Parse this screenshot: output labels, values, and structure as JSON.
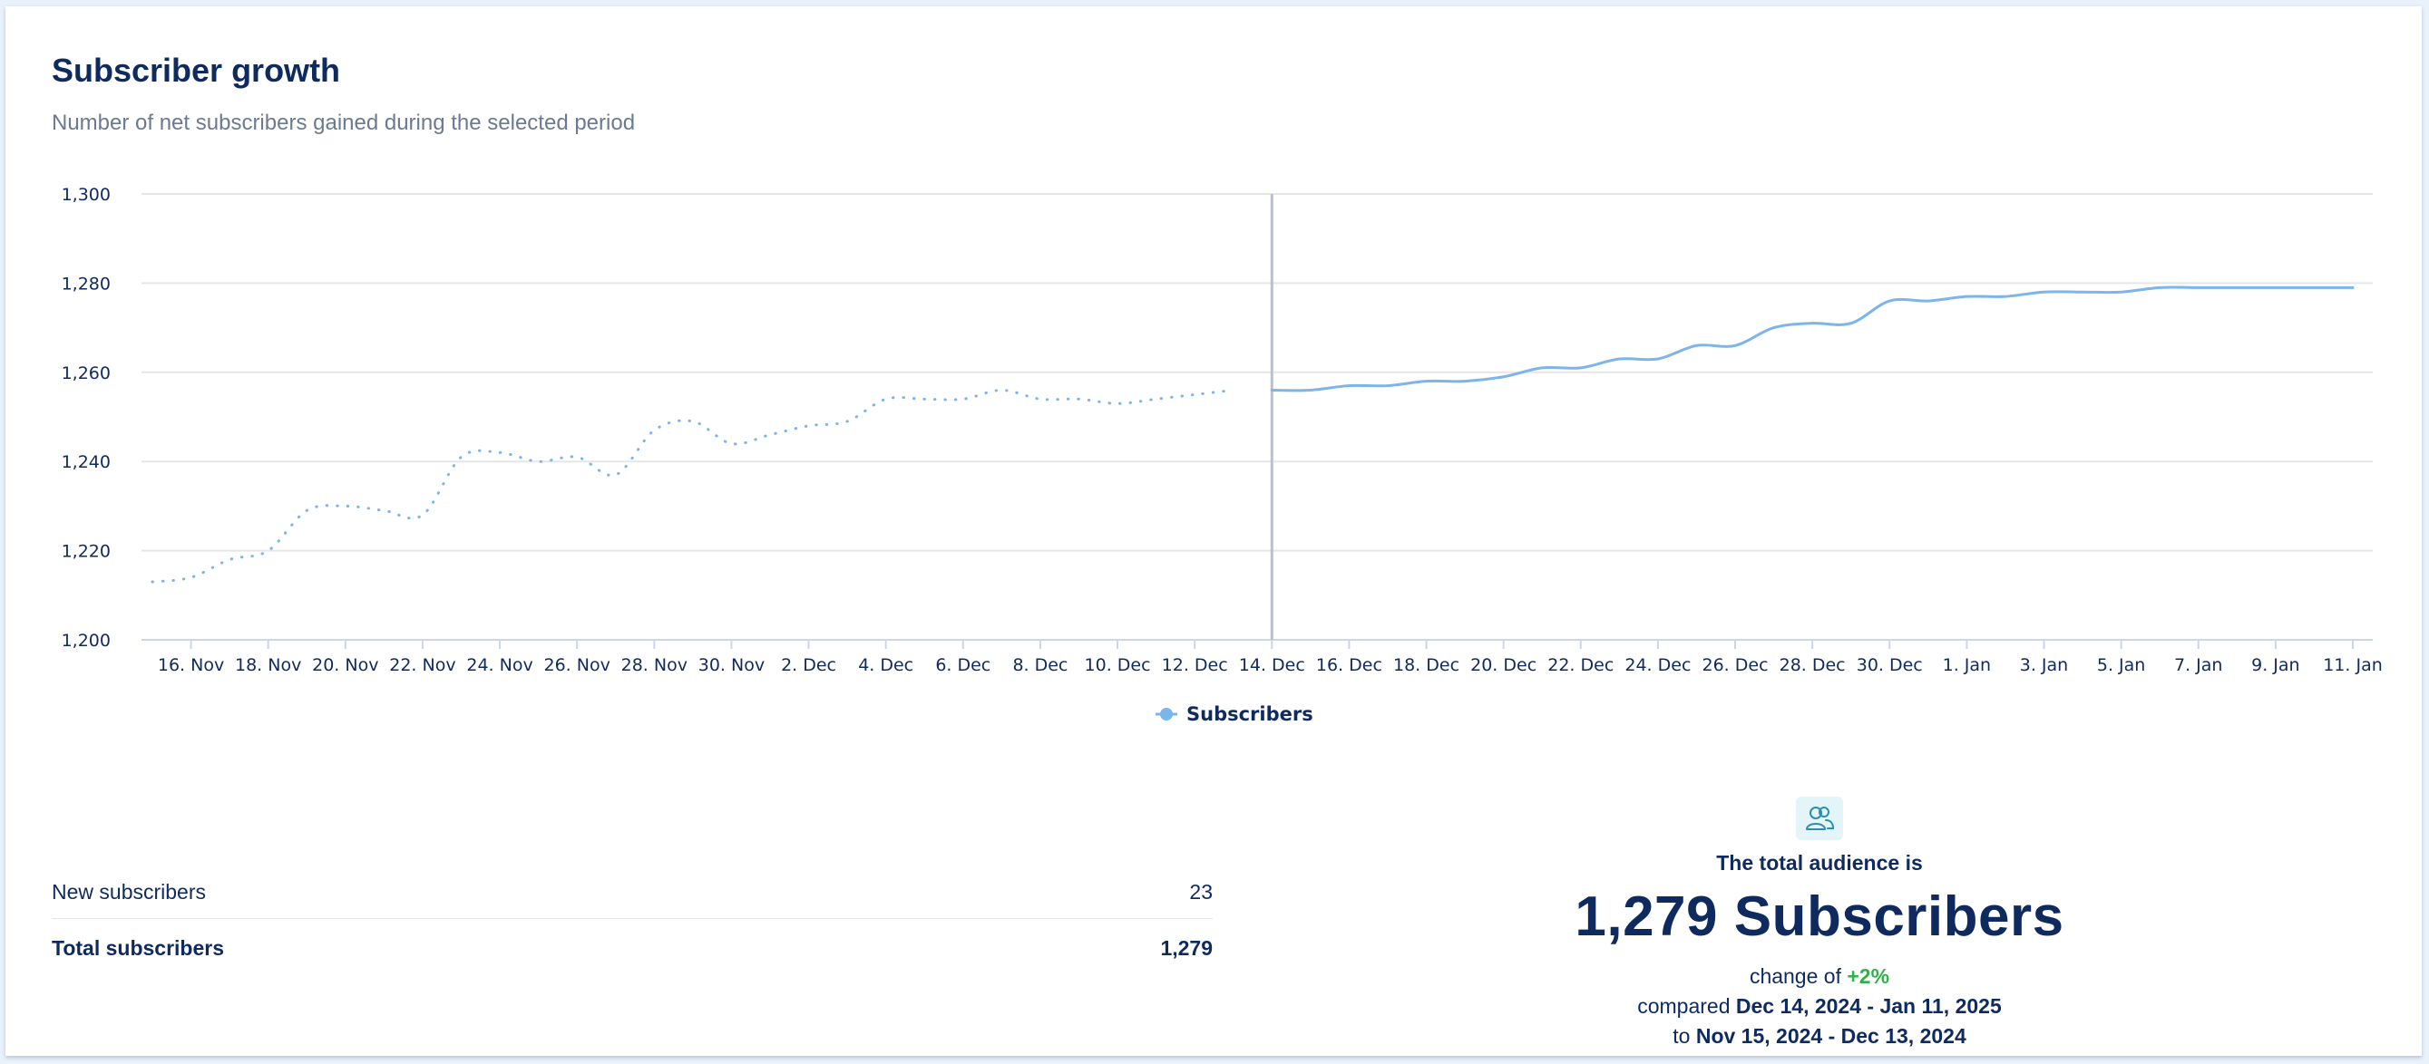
{
  "header": {
    "title": "Subscriber growth",
    "subtitle": "Number of net subscribers gained during the selected period"
  },
  "chart_data": {
    "type": "line",
    "title": "",
    "xlabel": "",
    "ylabel": "",
    "x_unit": "date",
    "start_date": "2024-11-15",
    "end_date": "2025-01-11",
    "ylim": [
      1200,
      1300
    ],
    "yticks": [
      1200,
      1220,
      1240,
      1260,
      1280,
      1300
    ],
    "y_tick_labels": [
      "1,200",
      "1,220",
      "1,240",
      "1,260",
      "1,280",
      "1,300"
    ],
    "x_tick_labels": [
      "16. Nov",
      "18. Nov",
      "20. Nov",
      "22. Nov",
      "24. Nov",
      "26. Nov",
      "28. Nov",
      "30. Nov",
      "2. Dec",
      "4. Dec",
      "6. Dec",
      "8. Dec",
      "10. Dec",
      "12. Dec",
      "14. Dec",
      "16. Dec",
      "18. Dec",
      "20. Dec",
      "22. Dec",
      "24. Dec",
      "26. Dec",
      "28. Dec",
      "30. Dec",
      "1. Jan",
      "3. Jan",
      "5. Jan",
      "7. Jan",
      "9. Jan",
      "11. Jan"
    ],
    "grid": true,
    "divider_at": "14. Dec",
    "legend_position": "bottom-center",
    "series": [
      {
        "name": "Subscribers",
        "color": "#7cb5ec",
        "segments": [
          {
            "style": "dotted",
            "label": "comparison period",
            "points": [
              [
                "15. Nov",
                1213
              ],
              [
                "16. Nov",
                1214
              ],
              [
                "17. Nov",
                1218
              ],
              [
                "18. Nov",
                1220
              ],
              [
                "19. Nov",
                1229
              ],
              [
                "20. Nov",
                1230
              ],
              [
                "21. Nov",
                1229
              ],
              [
                "22. Nov",
                1228
              ],
              [
                "23. Nov",
                1241
              ],
              [
                "24. Nov",
                1242
              ],
              [
                "25. Nov",
                1240
              ],
              [
                "26. Nov",
                1241
              ],
              [
                "27. Nov",
                1237
              ],
              [
                "28. Nov",
                1247
              ],
              [
                "29. Nov",
                1249
              ],
              [
                "30. Nov",
                1244
              ],
              [
                "1. Dec",
                1246
              ],
              [
                "2. Dec",
                1248
              ],
              [
                "3. Dec",
                1249
              ],
              [
                "4. Dec",
                1254
              ],
              [
                "5. Dec",
                1254
              ],
              [
                "6. Dec",
                1254
              ],
              [
                "7. Dec",
                1256
              ],
              [
                "8. Dec",
                1254
              ],
              [
                "9. Dec",
                1254
              ],
              [
                "10. Dec",
                1253
              ],
              [
                "11. Dec",
                1254
              ],
              [
                "12. Dec",
                1255
              ],
              [
                "13. Dec",
                1256
              ]
            ]
          },
          {
            "style": "solid",
            "label": "selected period",
            "points": [
              [
                "14. Dec",
                1256
              ],
              [
                "15. Dec",
                1256
              ],
              [
                "16. Dec",
                1257
              ],
              [
                "17. Dec",
                1257
              ],
              [
                "18. Dec",
                1258
              ],
              [
                "19. Dec",
                1258
              ],
              [
                "20. Dec",
                1259
              ],
              [
                "21. Dec",
                1261
              ],
              [
                "22. Dec",
                1261
              ],
              [
                "23. Dec",
                1263
              ],
              [
                "24. Dec",
                1263
              ],
              [
                "25. Dec",
                1266
              ],
              [
                "26. Dec",
                1266
              ],
              [
                "27. Dec",
                1270
              ],
              [
                "28. Dec",
                1271
              ],
              [
                "29. Dec",
                1271
              ],
              [
                "30. Dec",
                1276
              ],
              [
                "31. Dec",
                1276
              ],
              [
                "1. Jan",
                1277
              ],
              [
                "2. Jan",
                1277
              ],
              [
                "3. Jan",
                1278
              ],
              [
                "4. Jan",
                1278
              ],
              [
                "5. Jan",
                1278
              ],
              [
                "6. Jan",
                1279
              ],
              [
                "7. Jan",
                1279
              ],
              [
                "8. Jan",
                1279
              ],
              [
                "9. Jan",
                1279
              ],
              [
                "10. Jan",
                1279
              ],
              [
                "11. Jan",
                1279
              ]
            ]
          }
        ]
      }
    ]
  },
  "stats": {
    "new_label": "New subscribers",
    "new_value": "23",
    "total_label": "Total subscribers",
    "total_value": "1,279"
  },
  "summary": {
    "icon": "users-icon",
    "intro": "The total audience is",
    "total": "1,279 Subscribers",
    "change_prefix": "change of ",
    "change_value": "+2%",
    "change_color": "#2fb24a",
    "compared_prefix": "compared ",
    "compared_range": "Dec 14, 2024 - Jan 11, 2025",
    "to_prefix": "to ",
    "to_range": "Nov 15, 2024 - Dec 13, 2024"
  }
}
